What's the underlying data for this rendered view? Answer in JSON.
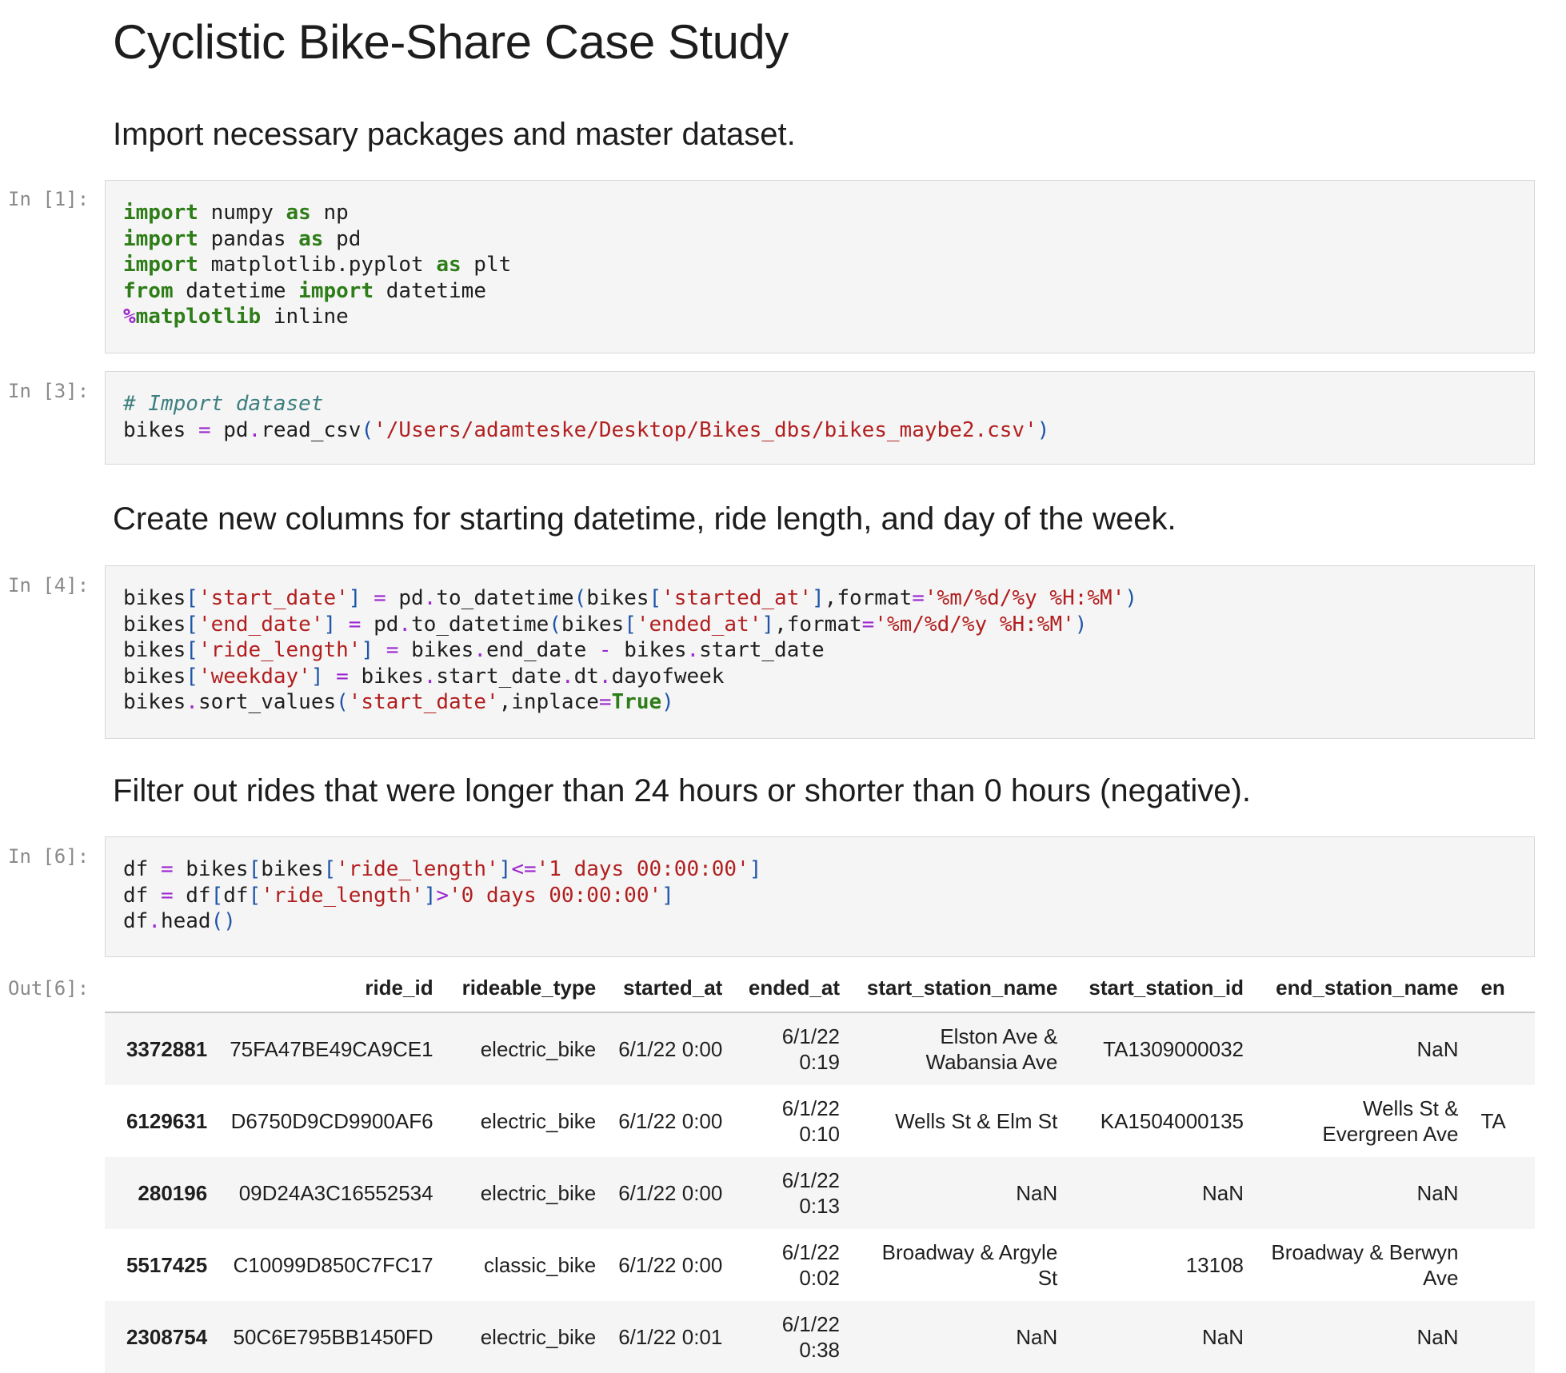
{
  "title": "Cyclistic Bike-Share Case Study",
  "sections": {
    "import_heading": "Import necessary packages and master dataset.",
    "columns_heading": "Create new columns for starting datetime, ride length, and day of the week.",
    "filter_heading": "Filter out rides that were longer than 24 hours or shorter than 0 hours (negative)."
  },
  "prompts": {
    "in1": "In [1]:",
    "in3": "In [3]:",
    "in4": "In [4]:",
    "in6": "In [6]:",
    "out6": "Out[6]:"
  },
  "code": {
    "t": {
      "import": "import",
      "as": "as",
      "from": "from",
      "magic_pct": "%",
      "magic_name": "matplotlib",
      "true": "True",
      "bikes": "bikes",
      "df": "df",
      "pd": "pd",
      "eq": "=",
      "dot": ".",
      "lb": "[",
      "rb": "]",
      "lp": "(",
      "rp": ")",
      "minus": "-",
      "le": "<=",
      "gt": ">",
      "comma": ","
    },
    "cell1": {
      "numpy": " numpy ",
      "np": " np",
      "pandas": " pandas ",
      "pd_alias": " pd",
      "mpl": " matplotlib.pyplot ",
      "plt": " plt",
      "datetime_mod": " datetime ",
      "datetime_name": " datetime",
      "inline": " inline"
    },
    "cell3": {
      "comment": "# Import dataset",
      "read_csv": "read_csv",
      "path": "'/Users/adamteske/Desktop/Bikes_dbs/bikes_maybe2.csv'"
    },
    "cell4": {
      "start_date": "'start_date'",
      "end_date": "'end_date'",
      "ride_length": "'ride_length'",
      "weekday": "'weekday'",
      "started_at": "'started_at'",
      "ended_at": "'ended_at'",
      "fmt": "'%m/%d/%y %H:%M'",
      "to_datetime": "to_datetime",
      "format_kw": "format",
      "end_date_attr": "end_date",
      "start_date_attr": "start_date",
      "dt": "dt",
      "dayofweek": "dayofweek",
      "sort_values": "sort_values",
      "inplace": "inplace"
    },
    "cell6": {
      "ride_length": "'ride_length'",
      "one_day": "'1 days 00:00:00'",
      "zero_day": "'0 days 00:00:00'",
      "head": "head"
    }
  },
  "table": {
    "columns": [
      "",
      "ride_id",
      "rideable_type",
      "started_at",
      "ended_at",
      "start_station_name",
      "start_station_id",
      "end_station_name",
      "en"
    ],
    "rows": [
      {
        "index": "3372881",
        "ride_id": "75FA47BE49CA9CE1",
        "rideable_type": "electric_bike",
        "started_at": "6/1/22 0:00",
        "ended_at": "6/1/22 0:19",
        "start_station_name": "Elston Ave & Wabansia Ave",
        "start_station_id": "TA1309000032",
        "end_station_name": "NaN",
        "extra": ""
      },
      {
        "index": "6129631",
        "ride_id": "D6750D9CD9900AF6",
        "rideable_type": "electric_bike",
        "started_at": "6/1/22 0:00",
        "ended_at": "6/1/22 0:10",
        "start_station_name": "Wells St & Elm St",
        "start_station_id": "KA1504000135",
        "end_station_name": "Wells St & Evergreen Ave",
        "extra": "TA"
      },
      {
        "index": "280196",
        "ride_id": "09D24A3C16552534",
        "rideable_type": "electric_bike",
        "started_at": "6/1/22 0:00",
        "ended_at": "6/1/22 0:13",
        "start_station_name": "NaN",
        "start_station_id": "NaN",
        "end_station_name": "NaN",
        "extra": ""
      },
      {
        "index": "5517425",
        "ride_id": "C10099D850C7FC17",
        "rideable_type": "classic_bike",
        "started_at": "6/1/22 0:00",
        "ended_at": "6/1/22 0:02",
        "start_station_name": "Broadway & Argyle St",
        "start_station_id": "13108",
        "end_station_name": "Broadway & Berwyn Ave",
        "extra": ""
      },
      {
        "index": "2308754",
        "ride_id": "50C6E795BB1450FD",
        "rideable_type": "electric_bike",
        "started_at": "6/1/22 0:01",
        "ended_at": "6/1/22 0:38",
        "start_station_name": "NaN",
        "start_station_id": "NaN",
        "end_station_name": "NaN",
        "extra": ""
      }
    ]
  }
}
